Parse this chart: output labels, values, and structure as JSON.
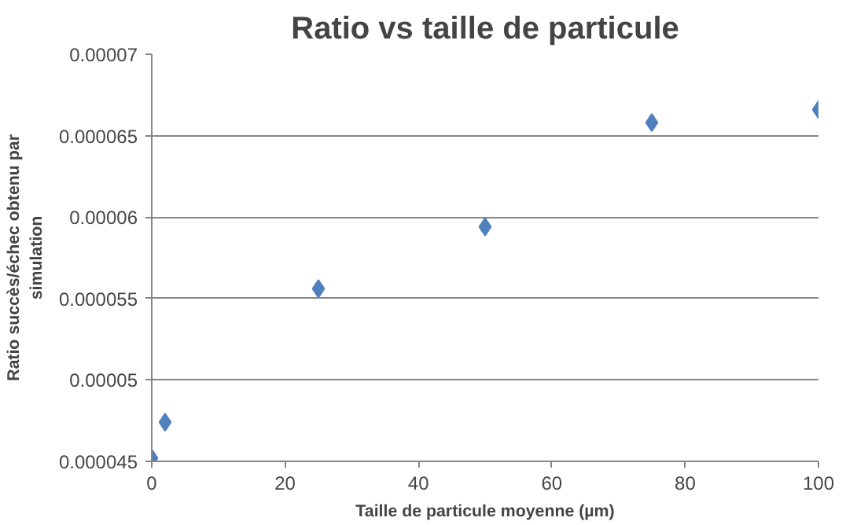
{
  "chart_data": {
    "type": "scatter",
    "title": "Ratio vs taille de particule",
    "xlabel": "Taille de particule moyenne (µm)",
    "ylabel": "Ratio succès/échec obtenu par\nsimulation",
    "x": [
      0,
      2,
      25,
      50,
      75,
      100
    ],
    "series": [
      {
        "color": "#4f81bd",
        "values": [
          4.52e-05,
          4.74e-05,
          5.56e-05,
          5.94e-05,
          6.58e-05,
          6.66e-05
        ]
      }
    ],
    "xlim": [
      0,
      100
    ],
    "xticks": [
      0,
      20,
      40,
      60,
      80,
      100
    ],
    "ylim": [
      4.5e-05,
      7e-05
    ],
    "yticks": [
      {
        "value": 4.5e-05,
        "label": "0.000045"
      },
      {
        "value": 5e-05,
        "label": "0.00005"
      },
      {
        "value": 5.5e-05,
        "label": "0.000055"
      },
      {
        "value": 6e-05,
        "label": "0.00006"
      },
      {
        "value": 6.5e-05,
        "label": "0.000065"
      },
      {
        "value": 7e-05,
        "label": "0.00007"
      }
    ],
    "grid": "y",
    "marker": "diamond"
  }
}
